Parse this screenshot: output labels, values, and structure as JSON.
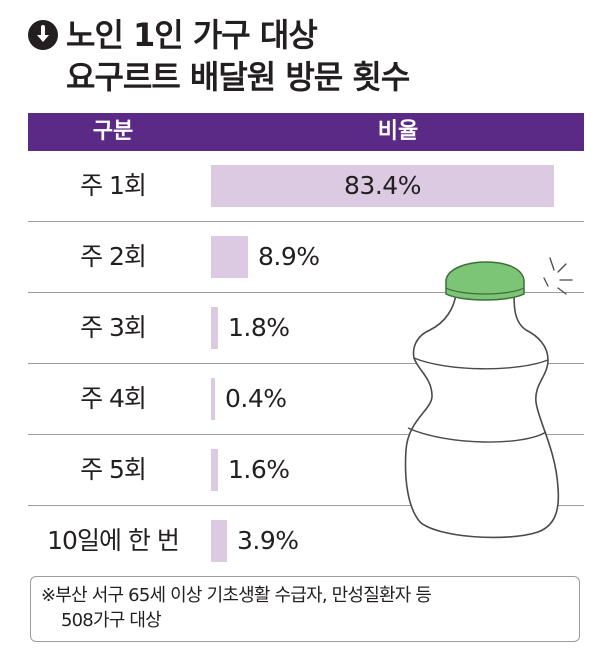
{
  "title": {
    "line1": "노인 1인 가구 대상",
    "line2": "요구르트 배달원 방문 횟수"
  },
  "icons": {
    "title_icon": "down-arrow-circle-icon",
    "illustration": "yogurt-bottle-illustration"
  },
  "colors": {
    "header_bg": "#5b2a86",
    "bar": "#dccae3"
  },
  "header": {
    "category": "구분",
    "ratio": "비율"
  },
  "chart_data": {
    "type": "bar",
    "orientation": "horizontal",
    "categories": [
      "주 1회",
      "주 2회",
      "주 3회",
      "주 4회",
      "주 5회",
      "10일에 한 번"
    ],
    "values": [
      83.4,
      8.9,
      1.8,
      0.4,
      1.6,
      3.9
    ],
    "value_labels": [
      "83.4%",
      "8.9%",
      "1.8%",
      "0.4%",
      "1.6%",
      "3.9%"
    ],
    "unit": "%",
    "xlim": [
      0,
      83.4
    ]
  },
  "footnote": {
    "line1": "※부산 서구 65세 이상 기초생활 수급자, 만성질환자 등",
    "line2": "508가구 대상"
  }
}
